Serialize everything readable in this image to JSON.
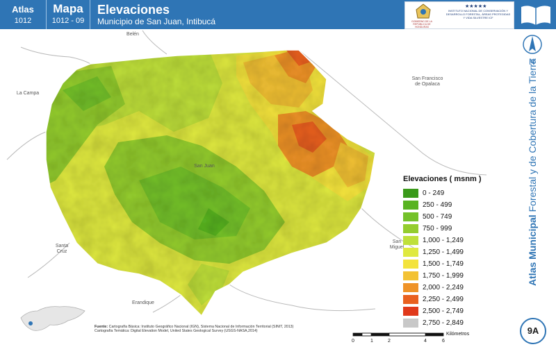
{
  "header": {
    "atlas_label": "Atlas",
    "atlas_number": "1012",
    "map_label": "Mapa",
    "map_number": "1012 - 09",
    "title": "Elevaciones",
    "subtitle": "Municipio de San Juan, Intibucá",
    "logo_gov_text": "GOBIERNO DE LA REPÚBLICA DE HONDURAS",
    "logo_institute_text": "INSTITUTO NACIONAL DE CONSERVACIÓN Y DESARROLLO FORESTAL, ÁREAS PROTEGIDAS Y VIDA SILVESTRE ICF"
  },
  "map": {
    "places": {
      "belen": "Belén",
      "la_campa": "La Campa",
      "san_francisco": "San Francisco de Opalaca",
      "san_juan": "San Juan",
      "santa_cruz": "Santa Cruz",
      "san_miguel": "San Miguel",
      "erandique": "Erandique"
    },
    "north_label": "N"
  },
  "side": {
    "title_bold": "Atlas Municipal",
    "title_rest": " Forestal y de Cobertura de la Tierra",
    "badge": "9A"
  },
  "legend": {
    "title": "Elevaciones ( msnm )",
    "items": [
      {
        "label": "0 - 249",
        "color": "#3a9a1a"
      },
      {
        "label": "250 - 499",
        "color": "#58b321"
      },
      {
        "label": "500 - 749",
        "color": "#74c12a"
      },
      {
        "label": "750 - 999",
        "color": "#94cd2e"
      },
      {
        "label": "1,000 - 1,249",
        "color": "#bfe03a"
      },
      {
        "label": "1,250 - 1,499",
        "color": "#dfe93f"
      },
      {
        "label": "1,500 - 1,749",
        "color": "#f3e33c"
      },
      {
        "label": "1,750 - 1,999",
        "color": "#f3c234"
      },
      {
        "label": "2,000 - 2,249",
        "color": "#ef9327"
      },
      {
        "label": "2,250 - 2,499",
        "color": "#e9601f"
      },
      {
        "label": "2,500 - 2,749",
        "color": "#e0391b"
      },
      {
        "label": "2,750 - 2,849",
        "color": "#c8c8c8"
      }
    ]
  },
  "source": {
    "label": "Fuente:",
    "line1": "Cartografía Básica: Instituto Geográfico Nacional (IGN), Sistema Nacional de Información Territorial (SINIT, 2013)",
    "line2": "Cartografía Temática: Digital Elevation Model, United States Geological Survey (USGS-NASA,2014)"
  },
  "scale": {
    "ticks": [
      "0",
      "1",
      "2",
      "4",
      "6"
    ],
    "unit": "Kilómetros"
  }
}
